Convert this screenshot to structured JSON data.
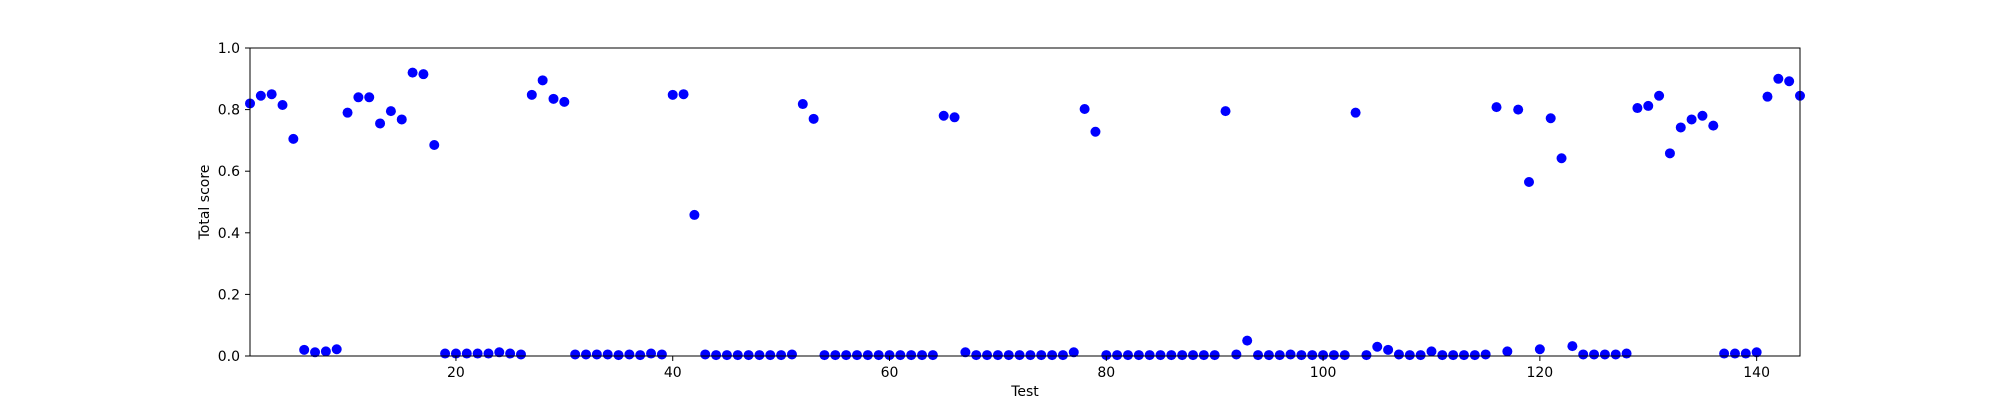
{
  "chart_data": {
    "type": "scatter",
    "title": "",
    "xlabel": "Test",
    "ylabel": "Total score",
    "xlim": [
      1,
      144
    ],
    "ylim": [
      0.0,
      1.0
    ],
    "xticks": [
      20,
      40,
      60,
      80,
      100,
      120,
      140
    ],
    "yticks": [
      0.0,
      0.2,
      0.4,
      0.6,
      0.8,
      1.0
    ],
    "ytick_labels": [
      "0.0",
      "0.2",
      "0.4",
      "0.6",
      "0.8",
      "1.0"
    ],
    "grid": false,
    "legend": "none",
    "marker_color": "#0000ff",
    "series": [
      {
        "x": [
          1,
          2,
          3,
          4,
          5,
          6,
          7,
          8,
          9,
          10,
          11,
          12,
          13,
          14,
          15,
          16,
          17,
          18,
          19,
          20,
          21,
          22,
          23,
          24,
          25,
          26,
          27,
          28,
          29,
          30,
          31,
          32,
          33,
          34,
          35,
          36,
          37,
          38,
          39,
          40,
          41,
          42,
          43,
          44,
          45,
          46,
          47,
          48,
          49,
          50,
          51,
          52,
          53,
          54,
          55,
          56,
          57,
          58,
          59,
          60,
          61,
          62,
          63,
          64,
          65,
          66,
          67,
          68,
          69,
          70,
          71,
          72,
          73,
          74,
          75,
          76,
          77,
          78,
          79,
          80,
          81,
          82,
          83,
          84,
          85,
          86,
          87,
          88,
          89,
          90,
          91,
          92,
          93,
          94,
          95,
          96,
          97,
          98,
          99,
          100,
          101,
          102,
          103,
          104,
          105,
          106,
          107,
          108,
          109,
          110,
          111,
          112,
          113,
          114,
          115,
          116,
          117,
          118,
          119,
          120,
          121,
          122,
          123,
          124,
          125,
          126,
          127,
          128,
          129,
          130,
          131,
          132,
          133,
          134,
          135,
          136,
          137,
          138,
          139,
          140,
          141,
          142,
          143,
          144
        ],
        "y": [
          0.82,
          0.845,
          0.85,
          0.815,
          0.705,
          0.02,
          0.012,
          0.015,
          0.022,
          0.79,
          0.84,
          0.84,
          0.755,
          0.795,
          0.768,
          0.92,
          0.915,
          0.685,
          0.008,
          0.008,
          0.008,
          0.008,
          0.008,
          0.012,
          0.008,
          0.005,
          0.848,
          0.895,
          0.835,
          0.825,
          0.005,
          0.005,
          0.005,
          0.005,
          0.003,
          0.005,
          0.003,
          0.008,
          0.005,
          0.848,
          0.85,
          0.458,
          0.005,
          0.003,
          0.003,
          0.003,
          0.003,
          0.003,
          0.003,
          0.003,
          0.005,
          0.818,
          0.77,
          0.003,
          0.003,
          0.003,
          0.003,
          0.003,
          0.003,
          0.003,
          0.003,
          0.003,
          0.003,
          0.003,
          0.78,
          0.775,
          0.012,
          0.003,
          0.003,
          0.003,
          0.003,
          0.003,
          0.003,
          0.003,
          0.003,
          0.003,
          0.012,
          0.802,
          0.728,
          0.003,
          0.003,
          0.003,
          0.003,
          0.003,
          0.003,
          0.003,
          0.003,
          0.003,
          0.003,
          0.003,
          0.795,
          0.005,
          0.05,
          0.003,
          0.003,
          0.003,
          0.005,
          0.003,
          0.003,
          0.003,
          0.003,
          0.003,
          0.79,
          0.003,
          0.03,
          0.02,
          0.005,
          0.003,
          0.003,
          0.015,
          0.003,
          0.003,
          0.003,
          0.003,
          0.005,
          0.808,
          0.015,
          0.8,
          0.565,
          0.022,
          0.772,
          0.642,
          0.032,
          0.005,
          0.005,
          0.005,
          0.005,
          0.008,
          0.805,
          0.812,
          0.845,
          0.658,
          0.742,
          0.768,
          0.78,
          0.748,
          0.008,
          0.008,
          0.008,
          0.012,
          0.842,
          0.9,
          0.892,
          0.845
        ]
      }
    ]
  }
}
